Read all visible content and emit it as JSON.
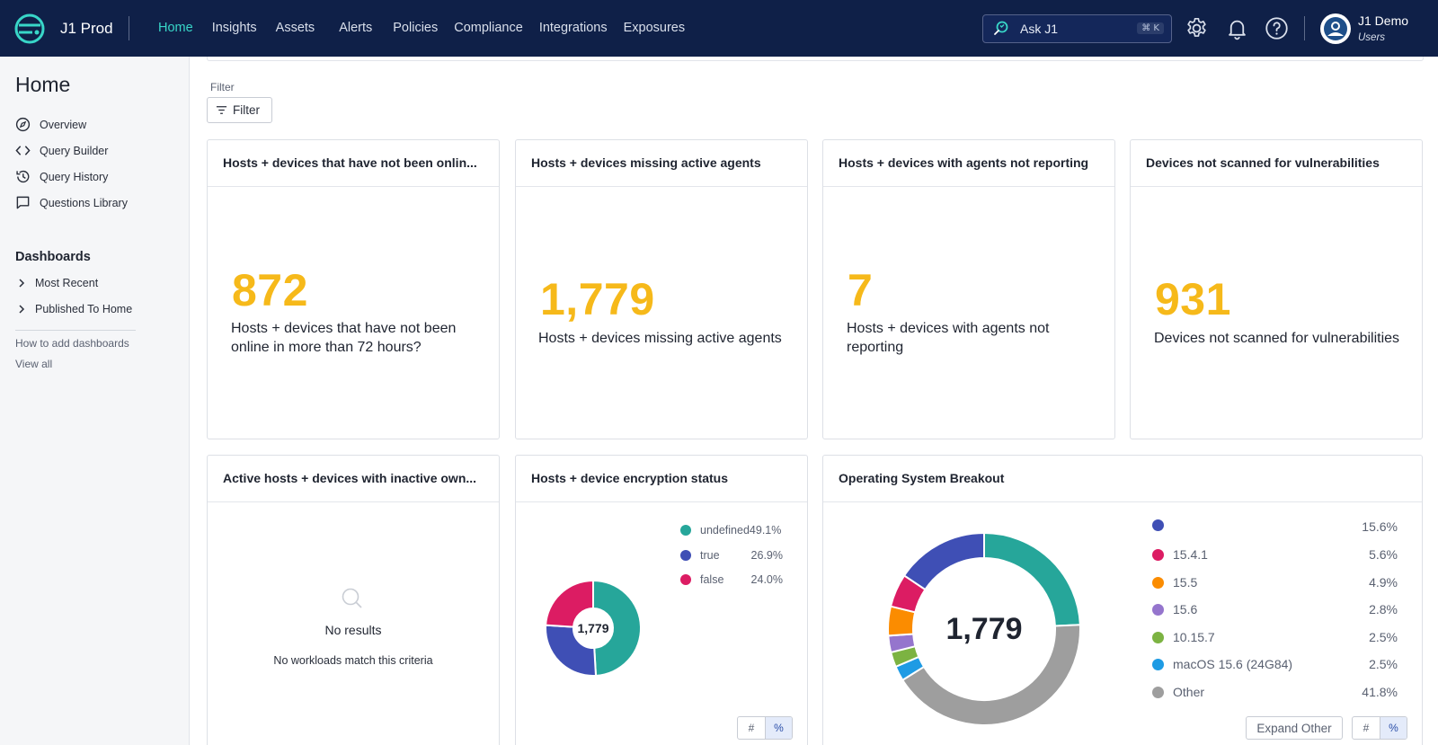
{
  "app": {
    "brand": "J1 Prod",
    "nav": [
      "Home",
      "Insights",
      "Assets",
      "Alerts",
      "Policies",
      "Compliance",
      "Integrations",
      "Exposures"
    ],
    "active_nav": "Home",
    "search_label": "Ask J1",
    "search_shortcut": "⌘ K",
    "user_name": "J1 Demo",
    "user_role": "Users"
  },
  "sidebar": {
    "title": "Home",
    "links": [
      "Overview",
      "Query Builder",
      "Query History",
      "Questions Library"
    ],
    "dashboards_title": "Dashboards",
    "dashboards": [
      "Most Recent",
      "Published To Home"
    ],
    "help_link": "How to add dashboards",
    "view_all": "View all"
  },
  "filter": {
    "label": "Filter",
    "button": "Filter"
  },
  "kpis": [
    {
      "title": "Hosts + devices that have not been onlin...",
      "value": "872",
      "description": "Hosts + devices that have not been online in more than 72 hours?"
    },
    {
      "title": "Hosts + devices missing active agents",
      "value": "1,779",
      "description": "Hosts + devices missing active agents"
    },
    {
      "title": "Hosts + devices with agents not reporting",
      "value": "7",
      "description": "Hosts + devices with agents not reporting"
    },
    {
      "title": "Devices not scanned for vulnerabilities",
      "value": "931",
      "description": "Devices not scanned for vulnerabilities"
    }
  ],
  "inactive_owner_card": {
    "title": "Active hosts + devices with inactive own...",
    "no_results": "No results",
    "no_results_sub": "No workloads match this criteria"
  },
  "encryption_card": {
    "title": "Hosts + device encryption status",
    "toggle": [
      "#",
      "%"
    ],
    "active_toggle": "%"
  },
  "os_card": {
    "title": "Operating System Breakout",
    "expand_button": "Expand Other",
    "toggle": [
      "#",
      "%"
    ],
    "active_toggle": "%"
  },
  "chart_data": [
    {
      "type": "pie",
      "donut": true,
      "center_label": "1,779",
      "labels": [
        "undefined",
        "true",
        "false"
      ],
      "values": [
        49.1,
        26.9,
        24.0
      ],
      "value_labels": [
        "49.1%",
        "26.9%",
        "24.0%"
      ],
      "colors": [
        "#26a69a",
        "#3f4fb5",
        "#dc1c63"
      ],
      "legend": "top-right"
    },
    {
      "type": "pie",
      "donut": true,
      "center_label": "1,779",
      "labels": [
        "",
        "15.4.1",
        "15.5",
        "15.6",
        "10.15.7",
        "macOS 15.6 (24G84)",
        "Other"
      ],
      "values": [
        15.6,
        5.6,
        4.9,
        2.8,
        2.5,
        2.5,
        41.8
      ],
      "value_labels": [
        "15.6%",
        "5.6%",
        "4.9%",
        "2.8%",
        "2.5%",
        "2.5%",
        "41.8%"
      ],
      "colors": [
        "#3f4fb5",
        "#dc1c63",
        "#fb8c00",
        "#9575cd",
        "#7cb342",
        "#1e9be4",
        "#9e9e9e"
      ],
      "legend": "right",
      "unlabeled_share": 24.3,
      "unlabeled_color": "#26a69a"
    }
  ]
}
